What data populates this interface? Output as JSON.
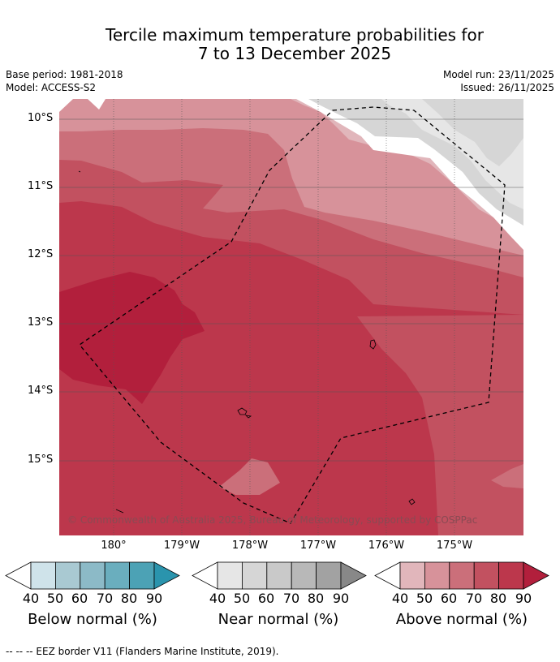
{
  "title": {
    "line1": "Tercile maximum temperature probabilities for",
    "line2": "7 to 13 December 2025"
  },
  "meta": {
    "base_period": "Base period: 1981-2018",
    "model": "Model: ACCESS-S2",
    "model_run": "Model run: 23/11/2025",
    "issued": "Issued: 26/11/2025"
  },
  "map": {
    "lat_labels": [
      "10°S",
      "11°S",
      "12°S",
      "13°S",
      "14°S",
      "15°S"
    ],
    "lon_labels": [
      "180°",
      "179°W",
      "178°W",
      "177°W",
      "176°W",
      "175°W"
    ],
    "copyright": "© Commonwealth of Australia 2025, Bureau of Meteorology, supported by COSPPac"
  },
  "colorbars": {
    "ticks": [
      "40",
      "50",
      "60",
      "70",
      "80",
      "90"
    ],
    "below": {
      "title": "Below normal (%)",
      "colors": [
        "#cfe3ea",
        "#a9c9d2",
        "#8cbac7",
        "#6aaebe",
        "#4ca2b5",
        "#2a94ad"
      ]
    },
    "near": {
      "title": "Near normal (%)",
      "colors": [
        "#e6e6e6",
        "#d6d6d6",
        "#c9c9c9",
        "#b8b8b8",
        "#a2a2a2",
        "#888888"
      ]
    },
    "above": {
      "title": "Above normal (%)",
      "colors": [
        "#e1b6bb",
        "#d7929a",
        "#cb6f7a",
        "#c25160",
        "#bc374c",
        "#b21f3c"
      ]
    }
  },
  "footer": "--  --  -- EEZ border V11 (Flanders Marine Institute, 2019)."
}
